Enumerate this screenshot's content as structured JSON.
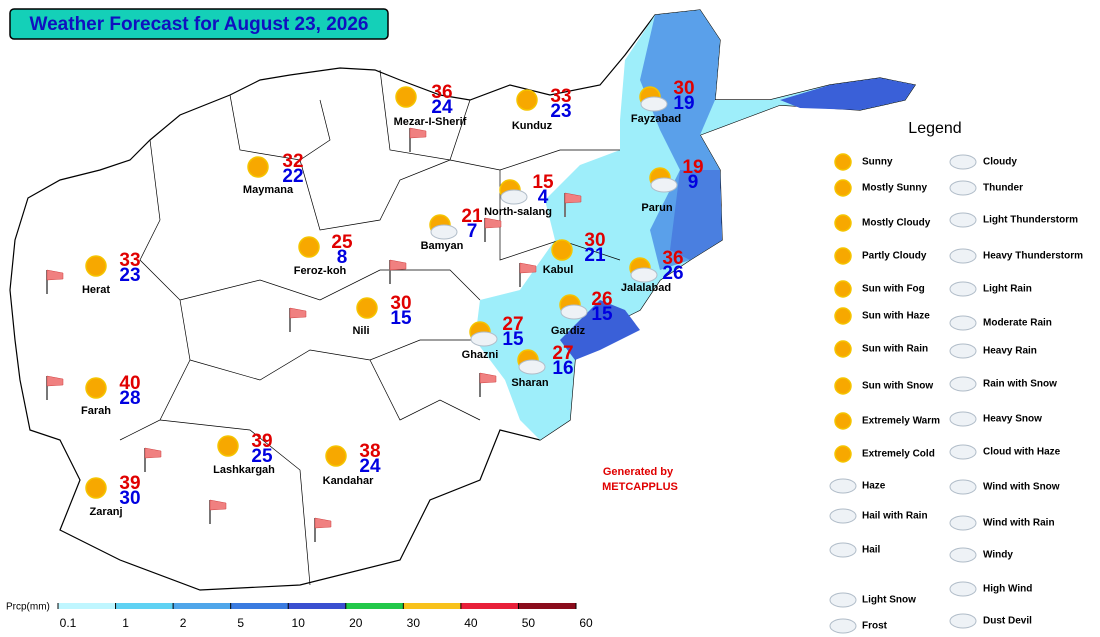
{
  "title": "Weather Forecast for August 23, 2026",
  "cities": [
    {
      "name": "Mezar-I-Sherif",
      "max": 36,
      "min": 24
    },
    {
      "name": "Kunduz",
      "max": 33,
      "min": 23
    },
    {
      "name": "Fayzabad",
      "max": 30,
      "min": 19
    },
    {
      "name": "Maymana",
      "max": 32,
      "min": 22
    },
    {
      "name": "North-salang",
      "max": 15,
      "min": 4
    },
    {
      "name": "Parun",
      "max": 19,
      "min": 9
    },
    {
      "name": "Bamyan",
      "max": 21,
      "min": 7
    },
    {
      "name": "Kabul",
      "max": 30,
      "min": 21
    },
    {
      "name": "Feroz-koh",
      "max": 25,
      "min": 8
    },
    {
      "name": "Jalalabad",
      "max": 36,
      "min": 26
    },
    {
      "name": "Herat",
      "max": 33,
      "min": 23
    },
    {
      "name": "Nili",
      "max": 30,
      "min": 15
    },
    {
      "name": "Gardiz",
      "max": 26,
      "min": 15
    },
    {
      "name": "Ghazni",
      "max": 27,
      "min": 15
    },
    {
      "name": "Sharan",
      "max": 27,
      "min": 16
    },
    {
      "name": "Farah",
      "max": 40,
      "min": 28
    },
    {
      "name": "Lashkargah",
      "max": 39,
      "min": 25
    },
    {
      "name": "Kandahar",
      "max": 38,
      "min": 24
    },
    {
      "name": "Zaranj",
      "max": 39,
      "min": 30
    }
  ],
  "credit": [
    "Generated by",
    "METCAPPLUS"
  ],
  "legend": {
    "title": "Legend",
    "left": [
      "Sunny",
      "Mostly Sunny",
      "Mostly Cloudy",
      "Partly Cloudy",
      "Sun with Fog",
      "Sun with Haze",
      "Sun with Rain",
      "Sun with Snow",
      "Extremely Warm",
      "Extremely Cold",
      "Haze",
      "Hail with Rain",
      "Hail",
      "Light Snow",
      "Frost"
    ],
    "right": [
      "Cloudy",
      "Thunder",
      "Light Thunderstorm",
      "Heavy Thunderstorm",
      "Light Rain",
      "Moderate Rain",
      "Heavy Rain",
      "Rain with Snow",
      "Heavy Snow",
      "Cloud with Haze",
      "Wind with Snow",
      "Wind with Rain",
      "Windy",
      "High Wind",
      "Dust Devil"
    ]
  },
  "precip_scale": {
    "label": "Prcp(mm)",
    "ticks": [
      0.1,
      1,
      2,
      5,
      10,
      20,
      30,
      40,
      50,
      60
    ],
    "colors": [
      "#bff6ff",
      "#5fd2f3",
      "#4fa6ea",
      "#3a7be0",
      "#3a4fd0",
      "#22c84a",
      "#f8c21c",
      "#e8203a",
      "#8a0c1c"
    ]
  }
}
